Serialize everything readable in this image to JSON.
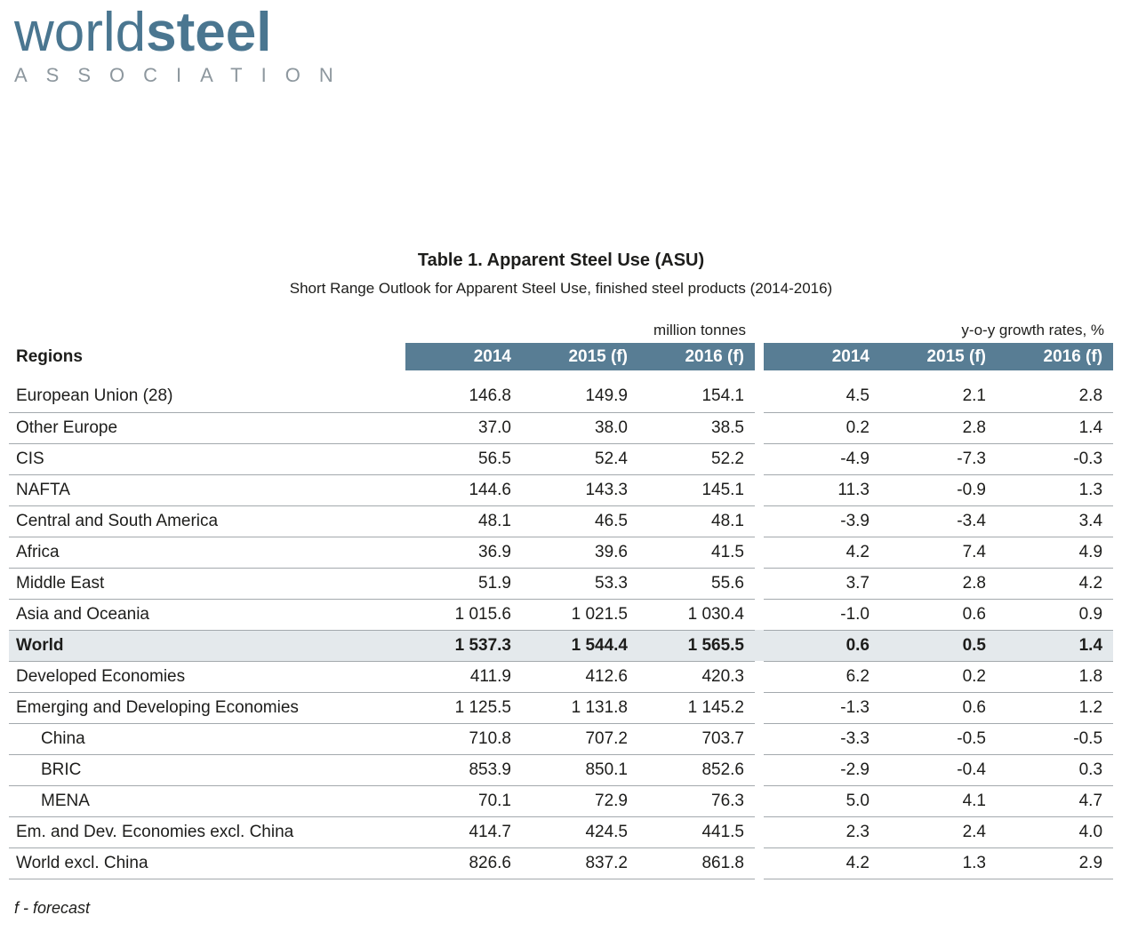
{
  "colors": {
    "brand_blue": "#4a7690",
    "header_bg": "#587d94",
    "header_text": "#ffffff",
    "row_line": "#a3a9ad",
    "world_row_bg": "#e4e9ec",
    "subtext_gray": "#8d979e",
    "text": "#1d1d1b"
  },
  "logo": {
    "word_light": "world",
    "word_bold": "steel",
    "subtext": "ASSOCIATION"
  },
  "title": "Table 1. Apparent Steel Use (ASU)",
  "subtitle": "Short Range Outlook for Apparent Steel Use, finished steel products (2014-2016)",
  "table": {
    "regions_label": "Regions",
    "group_headers": [
      "million tonnes",
      "y-o-y growth rates, %"
    ],
    "year_headers": [
      "2014",
      "2015 (f)",
      "2016 (f)"
    ],
    "rows": [
      {
        "region": "European Union (28)",
        "tonnes": [
          "146.8",
          "149.9",
          "154.1"
        ],
        "growth": [
          "4.5",
          "2.1",
          "2.8"
        ],
        "bold": false,
        "indent": false
      },
      {
        "region": "Other Europe",
        "tonnes": [
          "37.0",
          "38.0",
          "38.5"
        ],
        "growth": [
          "0.2",
          "2.8",
          "1.4"
        ],
        "bold": false,
        "indent": false
      },
      {
        "region": "CIS",
        "tonnes": [
          "56.5",
          "52.4",
          "52.2"
        ],
        "growth": [
          "-4.9",
          "-7.3",
          "-0.3"
        ],
        "bold": false,
        "indent": false
      },
      {
        "region": "NAFTA",
        "tonnes": [
          "144.6",
          "143.3",
          "145.1"
        ],
        "growth": [
          "11.3",
          "-0.9",
          "1.3"
        ],
        "bold": false,
        "indent": false
      },
      {
        "region": "Central and South America",
        "tonnes": [
          "48.1",
          "46.5",
          "48.1"
        ],
        "growth": [
          "-3.9",
          "-3.4",
          "3.4"
        ],
        "bold": false,
        "indent": false
      },
      {
        "region": "Africa",
        "tonnes": [
          "36.9",
          "39.6",
          "41.5"
        ],
        "growth": [
          "4.2",
          "7.4",
          "4.9"
        ],
        "bold": false,
        "indent": false
      },
      {
        "region": "Middle East",
        "tonnes": [
          "51.9",
          "53.3",
          "55.6"
        ],
        "growth": [
          "3.7",
          "2.8",
          "4.2"
        ],
        "bold": false,
        "indent": false
      },
      {
        "region": "Asia and Oceania",
        "tonnes": [
          "1 015.6",
          "1 021.5",
          "1 030.4"
        ],
        "growth": [
          "-1.0",
          "0.6",
          "0.9"
        ],
        "bold": false,
        "indent": false
      },
      {
        "region": "World",
        "tonnes": [
          "1 537.3",
          "1 544.4",
          "1 565.5"
        ],
        "growth": [
          "0.6",
          "0.5",
          "1.4"
        ],
        "bold": true,
        "indent": false
      },
      {
        "region": "Developed Economies",
        "tonnes": [
          "411.9",
          "412.6",
          "420.3"
        ],
        "growth": [
          "6.2",
          "0.2",
          "1.8"
        ],
        "bold": false,
        "indent": false
      },
      {
        "region": "Emerging and Developing Economies",
        "tonnes": [
          "1 125.5",
          "1 131.8",
          "1 145.2"
        ],
        "growth": [
          "-1.3",
          "0.6",
          "1.2"
        ],
        "bold": false,
        "indent": false
      },
      {
        "region": "China",
        "tonnes": [
          "710.8",
          "707.2",
          "703.7"
        ],
        "growth": [
          "-3.3",
          "-0.5",
          "-0.5"
        ],
        "bold": false,
        "indent": true
      },
      {
        "region": "BRIC",
        "tonnes": [
          "853.9",
          "850.1",
          "852.6"
        ],
        "growth": [
          "-2.9",
          "-0.4",
          "0.3"
        ],
        "bold": false,
        "indent": true
      },
      {
        "region": "MENA",
        "tonnes": [
          "70.1",
          "72.9",
          "76.3"
        ],
        "growth": [
          "5.0",
          "4.1",
          "4.7"
        ],
        "bold": false,
        "indent": true
      },
      {
        "region": "Em. and Dev. Economies excl. China",
        "tonnes": [
          "414.7",
          "424.5",
          "441.5"
        ],
        "growth": [
          "2.3",
          "2.4",
          "4.0"
        ],
        "bold": false,
        "indent": false
      },
      {
        "region": "World excl. China",
        "tonnes": [
          "826.6",
          "837.2",
          "861.8"
        ],
        "growth": [
          "4.2",
          "1.3",
          "2.9"
        ],
        "bold": false,
        "indent": false
      }
    ]
  },
  "footnote": "f - forecast"
}
